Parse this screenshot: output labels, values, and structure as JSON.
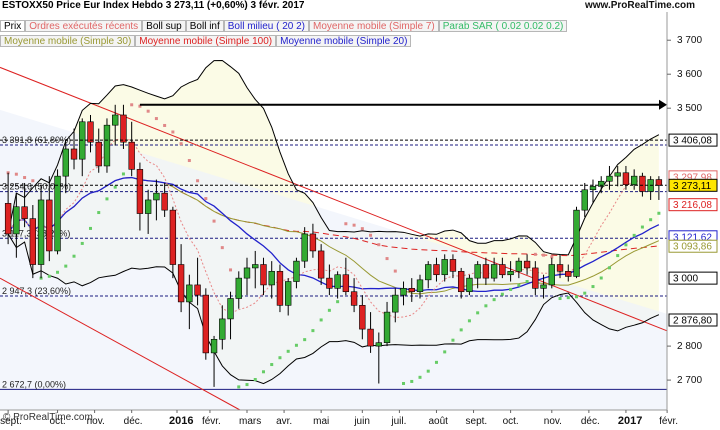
{
  "header": {
    "title": "ESTOXX50 Price Eur Index   Hebdo   3 273,11  (+0,60%)   3 févr. 2017",
    "brand": "www.ProRealTime.com"
  },
  "indicator_tabs_row1": [
    {
      "label": "Prix",
      "color": "#000000"
    },
    {
      "label": "Ordres exécutés récents",
      "color": "#e06666"
    },
    {
      "label": "Boll sup",
      "color": "#000000"
    },
    {
      "label": "Boll inf",
      "color": "#000000"
    },
    {
      "label": "Boll milieu ( 20 2)",
      "color": "#2222cc"
    },
    {
      "label": "Moyenne mobile (Simple 7)",
      "color": "#e06666"
    },
    {
      "label": "Parab SAR ( 0.02 0.02 0.2)",
      "color": "#33bb66"
    }
  ],
  "indicator_tabs_row2": [
    {
      "label": "Moyenne mobile (Simple 30)",
      "color": "#999933"
    },
    {
      "label": "Moyenne mobile (Simple 100)",
      "color": "#dd2222"
    },
    {
      "label": "Moyenne mobile (Simple 20)",
      "color": "#2222cc"
    }
  ],
  "watermark": "© ProRealTime.com",
  "colors": {
    "up": "#33aa33",
    "down": "#dd2222",
    "bollinger": "#000000",
    "ma7": "#e88888",
    "ma20": "#2222cc",
    "ma30": "#999933",
    "ma100": "#dd2222",
    "sar_up": "#66cc66",
    "sar_down": "#e08888",
    "fib": "#1a1a80"
  },
  "chart_data": {
    "type": "candlestick",
    "y_axis_ticks": [
      "3 700",
      "3 600",
      "3 500",
      "2 800",
      "2 700"
    ],
    "y_axis_tick_values": [
      3700,
      3600,
      3500,
      2800,
      2700
    ],
    "ylim": [
      2612,
      3783
    ],
    "x_axis_labels": [
      "sept.",
      "oct.",
      "nov.",
      "déc.",
      "2016",
      "févr.",
      "mars",
      "avr.",
      "mai",
      "juin",
      "juil.",
      "août",
      "sept.",
      "oct.",
      "nov.",
      "déc.",
      "2017",
      "févr."
    ],
    "x_axis_label_positions": [
      0,
      6,
      10.5,
      15,
      20.5,
      24.5,
      29,
      33.5,
      38,
      43,
      47.5,
      52,
      56.5,
      61,
      66,
      70.5,
      75,
      80
    ],
    "price_tags": [
      {
        "label": "3 406,08",
        "value": 3406.08,
        "color": "#000000"
      },
      {
        "label": "3 297,98",
        "value": 3297.98,
        "color": "#e06666"
      },
      {
        "label": "3 273,11",
        "value": 3273.11,
        "color": "#000000",
        "highlight": true
      },
      {
        "label": "3 216,08",
        "value": 3216.08,
        "color": "#dd2222"
      },
      {
        "label": "3 121,62",
        "value": 3121.62,
        "color": "#2222cc"
      },
      {
        "label": "3 093,86",
        "value": 3093.86,
        "color": "#999933"
      },
      {
        "label": "3 000",
        "value": 3000,
        "color": "#000000"
      },
      {
        "label": "2 876,80",
        "value": 2876.8,
        "color": "#000000"
      }
    ],
    "fibonacci": [
      {
        "label": "3 391,8 (61,80%)",
        "value": 3391.8
      },
      {
        "label": "3 254,6 (50,00%)",
        "value": 3254.6
      },
      {
        "label": "3 117,3 (38,20%)",
        "value": 3117.3
      },
      {
        "label": "2 947,3 (23,60%)",
        "value": 2947.3
      },
      {
        "label": "2 672,7 (0,00%)",
        "value": 2672.7
      }
    ],
    "candles": [
      {
        "o": 3220,
        "h": 3310,
        "l": 3100,
        "c": 3130
      },
      {
        "o": 3130,
        "h": 3250,
        "l": 3060,
        "c": 3210
      },
      {
        "o": 3210,
        "h": 3280,
        "l": 3150,
        "c": 3175
      },
      {
        "o": 3175,
        "h": 3215,
        "l": 3000,
        "c": 3040
      },
      {
        "o": 3040,
        "h": 3270,
        "l": 3000,
        "c": 3230
      },
      {
        "o": 3230,
        "h": 3300,
        "l": 3050,
        "c": 3080
      },
      {
        "o": 3080,
        "h": 3320,
        "l": 3070,
        "c": 3300
      },
      {
        "o": 3300,
        "h": 3400,
        "l": 3250,
        "c": 3380
      },
      {
        "o": 3380,
        "h": 3440,
        "l": 3320,
        "c": 3350
      },
      {
        "o": 3350,
        "h": 3470,
        "l": 3300,
        "c": 3460
      },
      {
        "o": 3460,
        "h": 3480,
        "l": 3370,
        "c": 3400
      },
      {
        "o": 3400,
        "h": 3440,
        "l": 3310,
        "c": 3330
      },
      {
        "o": 3330,
        "h": 3470,
        "l": 3310,
        "c": 3450
      },
      {
        "o": 3450,
        "h": 3510,
        "l": 3390,
        "c": 3480
      },
      {
        "o": 3480,
        "h": 3510,
        "l": 3380,
        "c": 3400
      },
      {
        "o": 3400,
        "h": 3460,
        "l": 3300,
        "c": 3320
      },
      {
        "o": 3320,
        "h": 3340,
        "l": 3140,
        "c": 3190
      },
      {
        "o": 3190,
        "h": 3260,
        "l": 3130,
        "c": 3230
      },
      {
        "o": 3230,
        "h": 3290,
        "l": 3170,
        "c": 3250
      },
      {
        "o": 3250,
        "h": 3280,
        "l": 3180,
        "c": 3200
      },
      {
        "o": 3200,
        "h": 3210,
        "l": 3000,
        "c": 3040
      },
      {
        "o": 3040,
        "h": 3100,
        "l": 2900,
        "c": 2930
      },
      {
        "o": 2930,
        "h": 3010,
        "l": 2850,
        "c": 2980
      },
      {
        "o": 2980,
        "h": 3060,
        "l": 2920,
        "c": 2950
      },
      {
        "o": 2950,
        "h": 2970,
        "l": 2760,
        "c": 2780
      },
      {
        "o": 2780,
        "h": 2830,
        "l": 2680,
        "c": 2820
      },
      {
        "o": 2820,
        "h": 2920,
        "l": 2790,
        "c": 2880
      },
      {
        "o": 2880,
        "h": 2960,
        "l": 2820,
        "c": 2940
      },
      {
        "o": 2940,
        "h": 3020,
        "l": 2910,
        "c": 3000
      },
      {
        "o": 3000,
        "h": 3060,
        "l": 2950,
        "c": 3030
      },
      {
        "o": 3030,
        "h": 3080,
        "l": 2970,
        "c": 3040
      },
      {
        "o": 3040,
        "h": 3060,
        "l": 2950,
        "c": 2980
      },
      {
        "o": 2980,
        "h": 3050,
        "l": 2940,
        "c": 3020
      },
      {
        "o": 3020,
        "h": 3040,
        "l": 2900,
        "c": 2920
      },
      {
        "o": 2920,
        "h": 3000,
        "l": 2890,
        "c": 2990
      },
      {
        "o": 2990,
        "h": 3060,
        "l": 2970,
        "c": 3050
      },
      {
        "o": 3050,
        "h": 3150,
        "l": 3030,
        "c": 3130
      },
      {
        "o": 3130,
        "h": 3160,
        "l": 3060,
        "c": 3080
      },
      {
        "o": 3080,
        "h": 3100,
        "l": 2980,
        "c": 3000
      },
      {
        "o": 3000,
        "h": 3040,
        "l": 2950,
        "c": 2970
      },
      {
        "o": 2970,
        "h": 3020,
        "l": 2940,
        "c": 3010
      },
      {
        "o": 3010,
        "h": 3060,
        "l": 2950,
        "c": 2960
      },
      {
        "o": 2960,
        "h": 3000,
        "l": 2900,
        "c": 2920
      },
      {
        "o": 2920,
        "h": 2950,
        "l": 2820,
        "c": 2850
      },
      {
        "o": 2850,
        "h": 2900,
        "l": 2780,
        "c": 2800
      },
      {
        "o": 2800,
        "h": 2840,
        "l": 2690,
        "c": 2810
      },
      {
        "o": 2810,
        "h": 2930,
        "l": 2800,
        "c": 2900
      },
      {
        "o": 2900,
        "h": 2970,
        "l": 2870,
        "c": 2950
      },
      {
        "o": 2950,
        "h": 2990,
        "l": 2920,
        "c": 2970
      },
      {
        "o": 2970,
        "h": 3000,
        "l": 2930,
        "c": 2960
      },
      {
        "o": 2960,
        "h": 3010,
        "l": 2940,
        "c": 2995
      },
      {
        "o": 2995,
        "h": 3050,
        "l": 2970,
        "c": 3040
      },
      {
        "o": 3040,
        "h": 3060,
        "l": 2990,
        "c": 3010
      },
      {
        "o": 3010,
        "h": 3070,
        "l": 2990,
        "c": 3055
      },
      {
        "o": 3055,
        "h": 3070,
        "l": 3000,
        "c": 3020
      },
      {
        "o": 3020,
        "h": 3030,
        "l": 2940,
        "c": 2960
      },
      {
        "o": 2960,
        "h": 3010,
        "l": 2950,
        "c": 3000
      },
      {
        "o": 3000,
        "h": 3050,
        "l": 2970,
        "c": 3040
      },
      {
        "o": 3040,
        "h": 3060,
        "l": 2980,
        "c": 3000
      },
      {
        "o": 3000,
        "h": 3060,
        "l": 2990,
        "c": 3040
      },
      {
        "o": 3040,
        "h": 3060,
        "l": 3000,
        "c": 3010
      },
      {
        "o": 3010,
        "h": 3050,
        "l": 2990,
        "c": 3020
      },
      {
        "o": 3020,
        "h": 3060,
        "l": 3000,
        "c": 3050
      },
      {
        "o": 3050,
        "h": 3070,
        "l": 3010,
        "c": 3030
      },
      {
        "o": 3030,
        "h": 3050,
        "l": 2950,
        "c": 2970
      },
      {
        "o": 2970,
        "h": 3010,
        "l": 2940,
        "c": 2980
      },
      {
        "o": 2980,
        "h": 3060,
        "l": 2970,
        "c": 3040
      },
      {
        "o": 3040,
        "h": 3070,
        "l": 3000,
        "c": 3020
      },
      {
        "o": 3020,
        "h": 3040,
        "l": 2990,
        "c": 3005
      },
      {
        "o": 3005,
        "h": 3210,
        "l": 3000,
        "c": 3200
      },
      {
        "o": 3200,
        "h": 3280,
        "l": 3180,
        "c": 3260
      },
      {
        "o": 3260,
        "h": 3290,
        "l": 3220,
        "c": 3270
      },
      {
        "o": 3270,
        "h": 3300,
        "l": 3250,
        "c": 3285
      },
      {
        "o": 3285,
        "h": 3330,
        "l": 3260,
        "c": 3300
      },
      {
        "o": 3300,
        "h": 3330,
        "l": 3270,
        "c": 3310
      },
      {
        "o": 3310,
        "h": 3330,
        "l": 3260,
        "c": 3275
      },
      {
        "o": 3275,
        "h": 3320,
        "l": 3260,
        "c": 3300
      },
      {
        "o": 3300,
        "h": 3310,
        "l": 3240,
        "c": 3255
      },
      {
        "o": 3255,
        "h": 3300,
        "l": 3230,
        "c": 3290
      },
      {
        "o": 3290,
        "h": 3300,
        "l": 3230,
        "c": 3273
      }
    ]
  }
}
